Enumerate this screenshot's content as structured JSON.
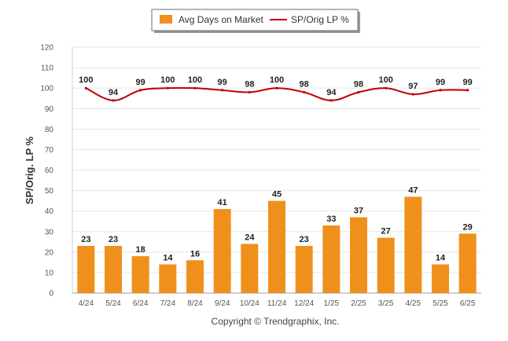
{
  "chart_data": {
    "type": "bar",
    "title": "",
    "ylabel": "SP/Orig. LP %",
    "xlabel": "",
    "ylim": [
      0,
      120
    ],
    "yticks": [
      0,
      10,
      20,
      30,
      40,
      50,
      60,
      70,
      80,
      90,
      100,
      110,
      120
    ],
    "grid": true,
    "legend_position": "top-center",
    "categories": [
      "4/24",
      "5/24",
      "6/24",
      "7/24",
      "8/24",
      "9/24",
      "10/24",
      "11/24",
      "12/24",
      "1/25",
      "2/25",
      "3/25",
      "4/25",
      "5/25",
      "6/25"
    ],
    "series": [
      {
        "name": "Avg Days on Market",
        "type": "bar",
        "color": "#F0901C",
        "values": [
          23,
          23,
          18,
          14,
          16,
          41,
          24,
          45,
          23,
          33,
          37,
          27,
          47,
          14,
          29
        ]
      },
      {
        "name": "SP/Orig LP %",
        "type": "line",
        "color": "#C00000",
        "values": [
          100,
          94,
          99,
          100,
          100,
          99,
          98,
          100,
          98,
          94,
          98,
          100,
          97,
          99,
          99
        ]
      }
    ],
    "footer": "Copyright © Trendgraphix, Inc."
  }
}
